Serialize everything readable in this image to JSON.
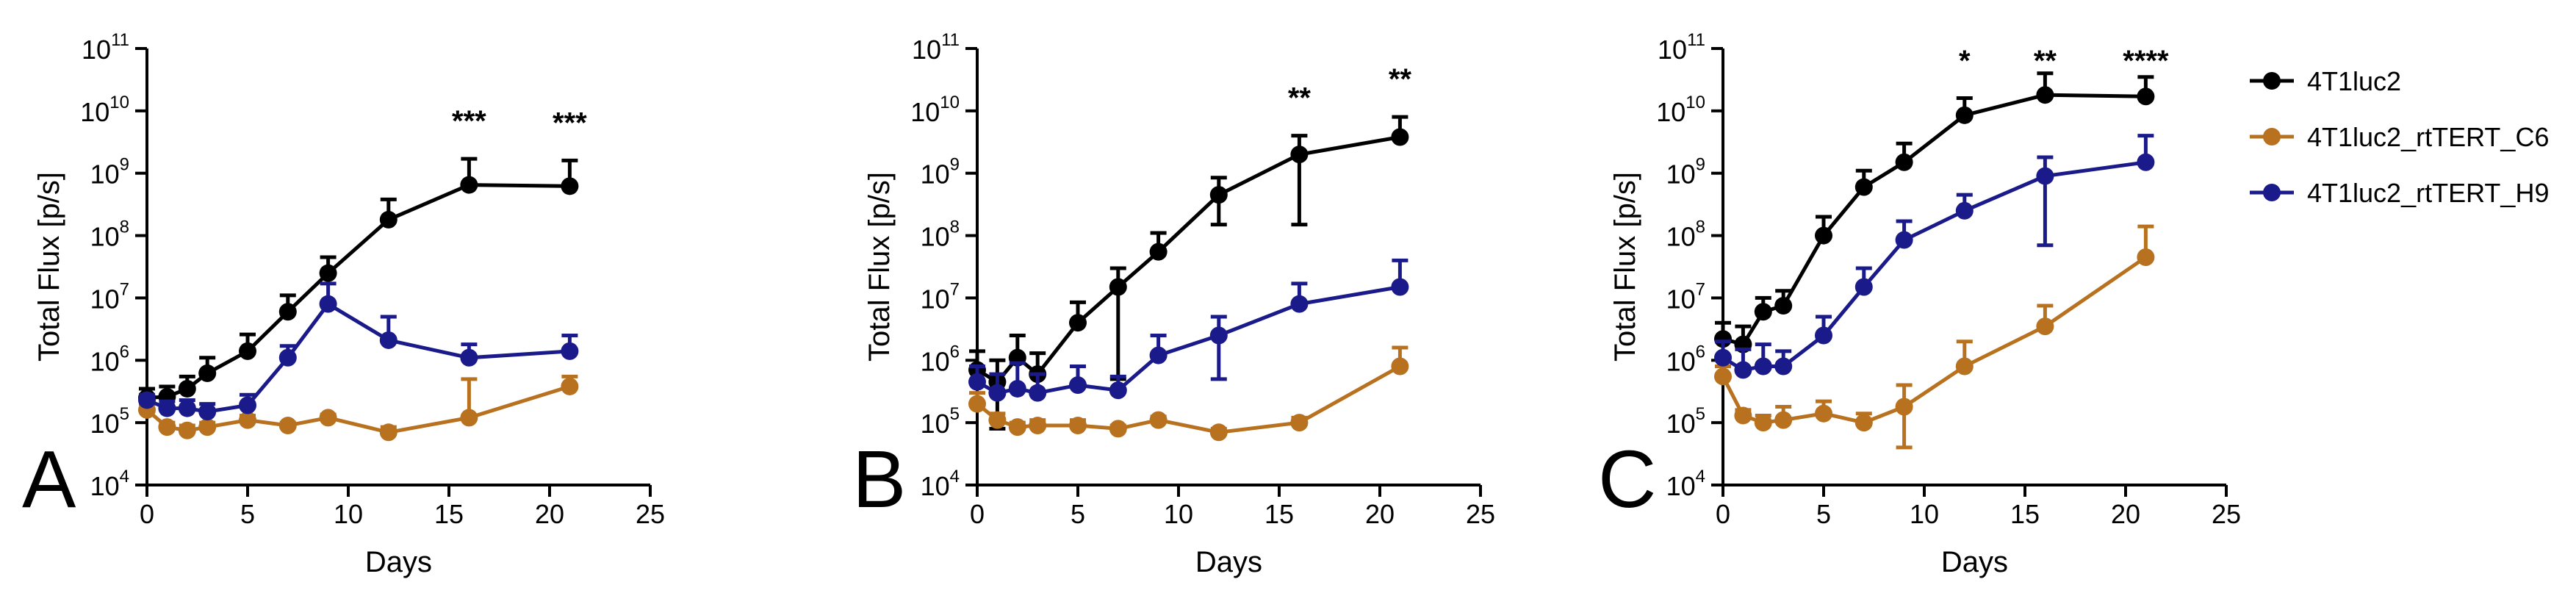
{
  "legend": {
    "entries": [
      {
        "label": "4T1luc2",
        "color": "#000000"
      },
      {
        "label": "4T1luc2_rtTERT_C6",
        "color": "#B8711F"
      },
      {
        "label": "4T1luc2_rtTERT_H9",
        "color": "#1A1A8A"
      }
    ]
  },
  "chart_data": [
    {
      "type": "line",
      "panel_label": "A",
      "xlabel": "Days",
      "ylabel": "Total Flux [p/s]",
      "yscale": "log",
      "xlim": [
        0,
        25
      ],
      "ylim": [
        10000,
        100000000000
      ],
      "xticks": [
        "0",
        "5",
        "10",
        "15",
        "20",
        "25"
      ],
      "yticks": [
        {
          "base": "10",
          "exp": "4"
        },
        {
          "base": "10",
          "exp": "5"
        },
        {
          "base": "10",
          "exp": "6"
        },
        {
          "base": "10",
          "exp": "7"
        },
        {
          "base": "10",
          "exp": "8"
        },
        {
          "base": "10",
          "exp": "9"
        },
        {
          "base": "10",
          "exp": "10"
        },
        {
          "base": "10",
          "exp": "11"
        }
      ],
      "series": [
        {
          "name": "4T1luc2",
          "x": [
            0,
            1,
            2,
            3,
            5,
            7,
            9,
            12,
            16,
            21
          ],
          "y": [
            250000,
            260000,
            350000,
            620000,
            1400000,
            6000000,
            25000000,
            180000000,
            650000000,
            620000000
          ],
          "err_hi": [
            350000,
            380000,
            550000,
            1100000,
            2600000,
            11000000,
            45000000,
            380000000,
            1700000000,
            1600000000
          ]
        },
        {
          "name": "4T1luc2_rtTERT_C6",
          "x": [
            0,
            1,
            2,
            3,
            5,
            7,
            9,
            12,
            16,
            21
          ],
          "y": [
            160000,
            85000,
            75000,
            85000,
            110000,
            90000,
            120000,
            70000,
            120000,
            380000
          ],
          "err_hi": [
            200000,
            100000,
            90000,
            100000,
            130000,
            100000,
            135000,
            85000,
            500000,
            550000
          ]
        },
        {
          "name": "4T1luc2_rtTERT_H9",
          "x": [
            0,
            1,
            2,
            3,
            5,
            7,
            9,
            12,
            16,
            21
          ],
          "y": [
            230000,
            170000,
            170000,
            150000,
            190000,
            1100000,
            8000000,
            2100000,
            1100000,
            1400000
          ],
          "err_hi": [
            280000,
            220000,
            230000,
            200000,
            280000,
            1700000,
            17000000,
            5000000,
            1800000,
            2500000
          ]
        }
      ],
      "annotations": [
        {
          "x": 16,
          "text": "***"
        },
        {
          "x": 21,
          "text": "***"
        }
      ]
    },
    {
      "type": "line",
      "panel_label": "B",
      "xlabel": "Days",
      "ylabel": "Total Flux [p/s]",
      "yscale": "log",
      "xlim": [
        0,
        25
      ],
      "ylim": [
        10000,
        100000000000
      ],
      "xticks": [
        "0",
        "5",
        "10",
        "15",
        "20",
        "25"
      ],
      "yticks": [
        {
          "base": "10",
          "exp": "4"
        },
        {
          "base": "10",
          "exp": "5"
        },
        {
          "base": "10",
          "exp": "6"
        },
        {
          "base": "10",
          "exp": "7"
        },
        {
          "base": "10",
          "exp": "8"
        },
        {
          "base": "10",
          "exp": "9"
        },
        {
          "base": "10",
          "exp": "10"
        },
        {
          "base": "10",
          "exp": "11"
        }
      ],
      "series": [
        {
          "name": "4T1luc2",
          "x": [
            0,
            1,
            2,
            3,
            5,
            7,
            9,
            12,
            16,
            21
          ],
          "y": [
            700000,
            450000,
            1100000,
            600000,
            4000000,
            15000000,
            55000000,
            450000000,
            2000000000,
            3800000000
          ],
          "err_hi": [
            1400000,
            1000000,
            2500000,
            1300000,
            8500000,
            30000000,
            110000000,
            850000000,
            4000000000,
            8000000000
          ],
          "err_lo": [
            null,
            80000,
            null,
            null,
            null,
            500000,
            null,
            150000000,
            150000000,
            null
          ]
        },
        {
          "name": "4T1luc2_rtTERT_C6",
          "x": [
            0,
            1,
            2,
            3,
            5,
            7,
            9,
            12,
            16,
            21
          ],
          "y": [
            200000,
            110000,
            85000,
            90000,
            90000,
            80000,
            110000,
            70000,
            100000,
            800000
          ],
          "err_hi": [
            300000,
            140000,
            100000,
            110000,
            110000,
            90000,
            125000,
            80000,
            120000,
            1600000
          ]
        },
        {
          "name": "4T1luc2_rtTERT_H9",
          "x": [
            0,
            1,
            2,
            3,
            5,
            7,
            9,
            12,
            16,
            21
          ],
          "y": [
            450000,
            300000,
            350000,
            300000,
            400000,
            330000,
            1200000,
            2500000,
            8000000,
            15000000
          ],
          "err_hi": [
            800000,
            600000,
            900000,
            600000,
            800000,
            550000,
            2500000,
            5000000,
            17000000,
            40000000
          ],
          "err_lo": [
            null,
            null,
            null,
            null,
            null,
            null,
            null,
            500000,
            null,
            null
          ]
        }
      ],
      "annotations": [
        {
          "x": 16,
          "text": "**"
        },
        {
          "x": 21,
          "text": "**"
        }
      ]
    },
    {
      "type": "line",
      "panel_label": "C",
      "xlabel": "Days",
      "ylabel": "Total Flux [p/s]",
      "yscale": "log",
      "xlim": [
        0,
        25
      ],
      "ylim": [
        10000,
        100000000000
      ],
      "xticks": [
        "0",
        "5",
        "10",
        "15",
        "20",
        "25"
      ],
      "yticks": [
        {
          "base": "10",
          "exp": "4"
        },
        {
          "base": "10",
          "exp": "5"
        },
        {
          "base": "10",
          "exp": "6"
        },
        {
          "base": "10",
          "exp": "7"
        },
        {
          "base": "10",
          "exp": "8"
        },
        {
          "base": "10",
          "exp": "9"
        },
        {
          "base": "10",
          "exp": "10"
        },
        {
          "base": "10",
          "exp": "11"
        }
      ],
      "series": [
        {
          "name": "4T1luc2",
          "x": [
            0,
            1,
            2,
            3,
            5,
            7,
            9,
            12,
            16,
            21
          ],
          "y": [
            2200000,
            1800000,
            6000000,
            7500000,
            100000000,
            600000000,
            1500000000,
            8500000000,
            18000000000,
            17000000000
          ],
          "err_hi": [
            4000000,
            3500000,
            10000000,
            13000000,
            200000000,
            1100000000,
            3000000000,
            16000000000,
            40000000000,
            35000000000
          ]
        },
        {
          "name": "4T1luc2_rtTERT_C6",
          "x": [
            0,
            1,
            2,
            3,
            5,
            7,
            9,
            12,
            16,
            21
          ],
          "y": [
            550000,
            130000,
            100000,
            110000,
            140000,
            100000,
            180000,
            800000,
            3500000,
            45000000
          ],
          "err_hi": [
            800000,
            160000,
            130000,
            180000,
            220000,
            140000,
            400000,
            2000000,
            7500000,
            140000000
          ],
          "err_lo": [
            null,
            null,
            null,
            null,
            null,
            null,
            40000,
            null,
            null,
            null
          ]
        },
        {
          "name": "4T1luc2_rtTERT_H9",
          "x": [
            0,
            1,
            2,
            3,
            5,
            7,
            9,
            12,
            16,
            21
          ],
          "y": [
            1100000,
            700000,
            800000,
            800000,
            2500000,
            15000000,
            85000000,
            250000000,
            900000000,
            1500000000
          ],
          "err_hi": [
            2000000,
            1500000,
            1800000,
            1400000,
            5000000,
            30000000,
            170000000,
            450000000,
            1800000000,
            4000000000
          ],
          "err_lo": [
            null,
            null,
            null,
            null,
            null,
            null,
            null,
            null,
            70000000,
            null
          ]
        }
      ],
      "annotations": [
        {
          "x": 12,
          "text": "*"
        },
        {
          "x": 16,
          "text": "**"
        },
        {
          "x": 21,
          "text": "****"
        }
      ]
    }
  ]
}
